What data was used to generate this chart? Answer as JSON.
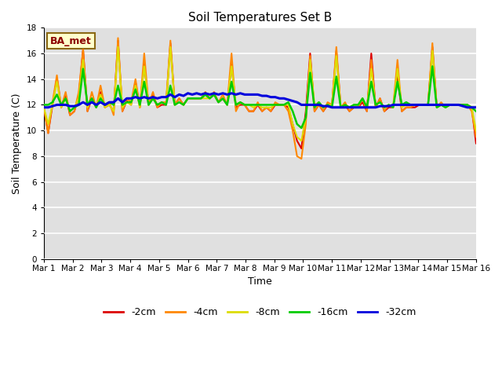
{
  "title": "Soil Temperatures Set B",
  "xlabel": "Time",
  "ylabel": "Soil Temperature (C)",
  "ylim": [
    0,
    18
  ],
  "yticks": [
    0,
    2,
    4,
    6,
    8,
    10,
    12,
    14,
    16,
    18
  ],
  "annotation": "BA_met",
  "legend_labels": [
    "-2cm",
    "-4cm",
    "-8cm",
    "-16cm",
    "-32cm"
  ],
  "legend_colors": [
    "#dd0000",
    "#ff8800",
    "#dddd00",
    "#00cc00",
    "#0000dd"
  ],
  "background_color": "#ffffff",
  "plot_bg_color": "#e0e0e0",
  "grid_color": "#ffffff",
  "x_tick_labels": [
    "Mar 1",
    "Mar 2",
    "Mar 3",
    "Mar 4",
    "Mar 5",
    "Mar 6",
    "Mar 7",
    "Mar 8",
    "Mar 9",
    "Mar 10",
    "Mar 11",
    "Mar 12",
    "Mar 13",
    "Mar 14",
    "Mar 15",
    "Mar 16"
  ],
  "series": {
    "cm2": [
      11.8,
      9.8,
      12.0,
      14.1,
      11.8,
      12.8,
      11.2,
      11.5,
      12.7,
      16.3,
      11.5,
      12.5,
      11.8,
      13.0,
      11.8,
      12.0,
      11.5,
      17.0,
      11.5,
      12.3,
      12.0,
      13.8,
      11.8,
      15.2,
      12.0,
      12.8,
      11.8,
      12.0,
      12.0,
      16.8,
      12.0,
      12.5,
      12.0,
      12.5,
      12.5,
      12.5,
      12.5,
      12.8,
      12.5,
      12.8,
      12.2,
      12.5,
      12.0,
      15.2,
      11.8,
      12.0,
      12.0,
      11.5,
      11.5,
      12.0,
      11.5,
      11.8,
      11.5,
      12.0,
      12.0,
      12.0,
      11.8,
      10.5,
      9.2,
      8.6,
      11.5,
      16.0,
      11.5,
      12.0,
      11.5,
      12.0,
      12.0,
      16.2,
      11.8,
      12.0,
      11.5,
      11.8,
      11.8,
      12.2,
      11.5,
      16.0,
      11.8,
      12.5,
      11.5,
      11.8,
      11.8,
      14.2,
      11.5,
      11.8,
      11.8,
      11.8,
      12.0,
      12.0,
      12.0,
      16.5,
      11.8,
      12.0,
      11.8,
      12.0,
      12.0,
      12.0,
      12.0,
      12.0,
      11.8,
      9.0
    ],
    "cm4": [
      11.8,
      9.8,
      12.2,
      14.3,
      11.8,
      13.0,
      11.2,
      11.5,
      13.0,
      16.3,
      11.5,
      13.0,
      11.8,
      13.5,
      11.8,
      12.2,
      11.2,
      17.2,
      11.5,
      12.5,
      12.2,
      14.0,
      11.8,
      16.0,
      12.0,
      13.0,
      11.8,
      12.2,
      12.2,
      17.0,
      12.0,
      12.5,
      12.0,
      12.5,
      12.5,
      12.5,
      12.5,
      13.0,
      12.5,
      13.0,
      12.2,
      12.8,
      12.0,
      16.0,
      11.5,
      12.2,
      12.0,
      11.5,
      11.5,
      12.2,
      11.5,
      11.8,
      11.5,
      12.2,
      12.0,
      12.0,
      11.5,
      10.0,
      8.0,
      7.8,
      10.5,
      15.8,
      11.5,
      12.0,
      11.5,
      12.2,
      12.0,
      16.5,
      11.8,
      12.2,
      11.5,
      11.8,
      11.8,
      12.5,
      11.5,
      15.5,
      11.8,
      12.5,
      11.5,
      12.0,
      11.8,
      15.5,
      11.5,
      11.8,
      11.8,
      12.0,
      12.0,
      12.0,
      12.0,
      16.8,
      11.8,
      12.2,
      11.8,
      12.0,
      12.0,
      12.0,
      12.0,
      12.0,
      11.5,
      9.5
    ],
    "cm8": [
      11.8,
      10.5,
      12.0,
      13.8,
      11.8,
      12.5,
      11.5,
      11.8,
      12.5,
      15.5,
      11.8,
      12.5,
      11.8,
      12.8,
      11.8,
      12.0,
      11.5,
      16.5,
      11.8,
      12.2,
      12.0,
      13.5,
      11.8,
      15.0,
      12.0,
      12.5,
      12.0,
      12.2,
      12.0,
      16.5,
      12.0,
      12.2,
      12.0,
      12.5,
      12.5,
      12.5,
      12.5,
      12.5,
      12.5,
      12.8,
      12.2,
      12.5,
      12.0,
      15.0,
      12.0,
      12.2,
      12.0,
      12.0,
      11.8,
      12.0,
      11.8,
      11.8,
      11.8,
      12.0,
      12.0,
      12.0,
      12.0,
      10.5,
      9.5,
      9.2,
      11.0,
      15.5,
      12.0,
      12.2,
      11.8,
      12.0,
      12.0,
      15.8,
      11.8,
      12.0,
      11.8,
      12.0,
      12.0,
      12.5,
      11.8,
      14.8,
      12.0,
      12.2,
      11.8,
      12.0,
      11.8,
      14.8,
      11.8,
      12.0,
      12.0,
      12.0,
      12.0,
      12.0,
      12.0,
      16.2,
      11.8,
      12.0,
      11.8,
      12.0,
      12.0,
      12.0,
      12.0,
      12.0,
      11.8,
      10.0
    ],
    "cm16": [
      12.0,
      12.0,
      12.2,
      12.8,
      12.0,
      12.5,
      11.5,
      11.8,
      12.0,
      14.8,
      12.0,
      12.5,
      11.8,
      12.5,
      12.0,
      12.2,
      12.0,
      13.5,
      12.0,
      12.2,
      12.2,
      13.2,
      12.0,
      13.8,
      12.0,
      12.5,
      12.0,
      12.2,
      12.0,
      13.5,
      12.0,
      12.2,
      12.0,
      12.5,
      12.5,
      12.5,
      12.5,
      12.8,
      12.5,
      12.8,
      12.2,
      12.5,
      12.0,
      13.8,
      12.0,
      12.2,
      12.0,
      12.0,
      12.0,
      12.0,
      12.0,
      12.0,
      12.0,
      12.0,
      12.0,
      12.0,
      12.2,
      11.5,
      10.5,
      10.2,
      11.0,
      14.5,
      11.8,
      12.2,
      11.8,
      12.0,
      11.8,
      14.2,
      11.8,
      12.0,
      11.8,
      12.0,
      12.0,
      12.5,
      11.8,
      13.8,
      12.0,
      12.2,
      11.8,
      12.0,
      11.8,
      13.8,
      12.0,
      12.2,
      12.0,
      12.0,
      12.0,
      12.0,
      12.0,
      15.0,
      11.8,
      12.0,
      11.8,
      12.0,
      12.0,
      12.0,
      12.0,
      12.0,
      11.8,
      11.5
    ],
    "cm32": [
      11.8,
      11.8,
      11.9,
      12.0,
      12.0,
      12.0,
      11.9,
      11.9,
      12.0,
      12.2,
      12.0,
      12.2,
      12.0,
      12.2,
      12.0,
      12.2,
      12.2,
      12.5,
      12.2,
      12.5,
      12.5,
      12.6,
      12.5,
      12.6,
      12.5,
      12.6,
      12.5,
      12.6,
      12.6,
      12.8,
      12.6,
      12.8,
      12.7,
      12.9,
      12.8,
      12.9,
      12.8,
      12.9,
      12.8,
      12.9,
      12.8,
      12.9,
      12.8,
      12.9,
      12.8,
      12.9,
      12.8,
      12.8,
      12.8,
      12.8,
      12.7,
      12.7,
      12.6,
      12.6,
      12.5,
      12.5,
      12.4,
      12.3,
      12.2,
      12.0,
      12.0,
      12.0,
      12.0,
      12.0,
      11.9,
      11.9,
      11.8,
      11.8,
      11.8,
      11.8,
      11.8,
      11.8,
      11.8,
      11.8,
      11.8,
      11.8,
      11.8,
      11.9,
      11.9,
      11.9,
      12.0,
      12.0,
      12.0,
      12.0,
      12.0,
      12.0,
      12.0,
      12.0,
      12.0,
      12.0,
      12.0,
      12.0,
      12.0,
      12.0,
      12.0,
      12.0,
      11.9,
      11.8,
      11.8,
      11.8
    ]
  }
}
